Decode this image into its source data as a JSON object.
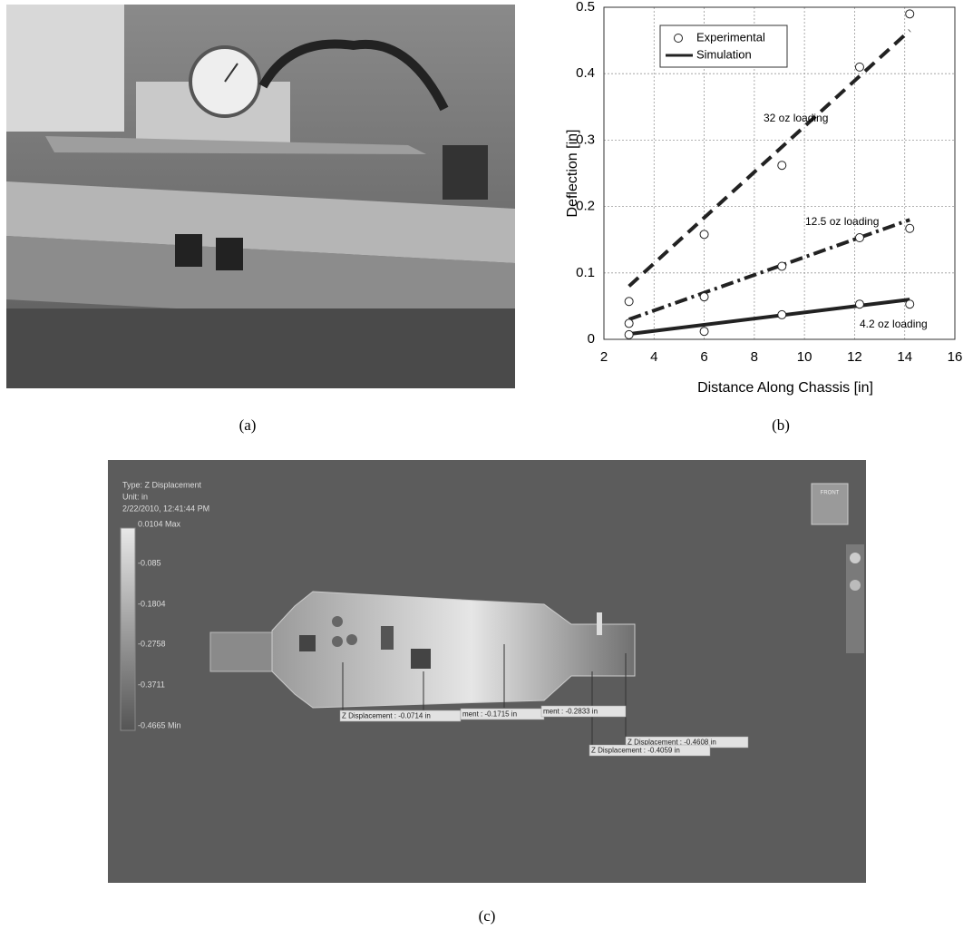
{
  "captions": [
    "(a)",
    "(b)",
    "(c)"
  ],
  "chart_data": {
    "type": "line",
    "xlabel": "Distance Along Chassis [in]",
    "ylabel": "Deflection [in]",
    "xlim": [
      2,
      16
    ],
    "xticks": [
      2,
      4,
      6,
      8,
      10,
      12,
      14,
      16
    ],
    "ylim": [
      0,
      0.5
    ],
    "yticks": [
      0,
      0.1,
      0.2,
      0.3,
      0.4,
      0.5
    ],
    "grid": true,
    "legend_position": "upper left",
    "color": "#222222",
    "experimental": {
      "name": "Experimental",
      "series": [
        {
          "x": [
            3,
            6,
            9.1,
            12.2,
            14.2
          ],
          "values": [
            0.057,
            0.158,
            0.262,
            0.41,
            0.49
          ]
        },
        {
          "x": [
            3,
            6,
            9.1,
            12.2,
            14.2
          ],
          "values": [
            0.024,
            0.064,
            0.11,
            0.153,
            0.167
          ]
        },
        {
          "x": [
            3,
            6,
            9.1,
            12.2,
            14.2
          ],
          "values": [
            0.007,
            0.012,
            0.037,
            0.053,
            0.053
          ]
        }
      ]
    },
    "simulation": {
      "name": "Simulation",
      "series": [
        {
          "label": "32 oz loading",
          "dash": "dashed",
          "x": [
            3,
            14.2
          ],
          "values": [
            0.08,
            0.465
          ]
        },
        {
          "label": "12.5 oz loading",
          "dash": "dashdot",
          "x": [
            3,
            14.2
          ],
          "values": [
            0.03,
            0.18
          ]
        },
        {
          "label": "4.2 oz loading",
          "dash": "solid",
          "x": [
            3,
            14.2
          ],
          "values": [
            0.008,
            0.06
          ]
        }
      ]
    }
  },
  "panel_c": {
    "header": [
      "Type: Z Displacement",
      "Unit: in",
      "2/22/2010, 12:41:44 PM"
    ],
    "colorbar_labels": [
      "0.0104 Max",
      "-0.085",
      "-0.1804",
      "-0.2758",
      "-0.3711",
      "-0.4665 Min"
    ],
    "probes": [
      "Z Displacement : -0.0714 in",
      "ment : -0.1715 in",
      "ment : -0.2833 in",
      "Z Displacement : -0.4608 in",
      "Z Displacement : -0.4059 in"
    ],
    "viewcube": "FRONT"
  }
}
